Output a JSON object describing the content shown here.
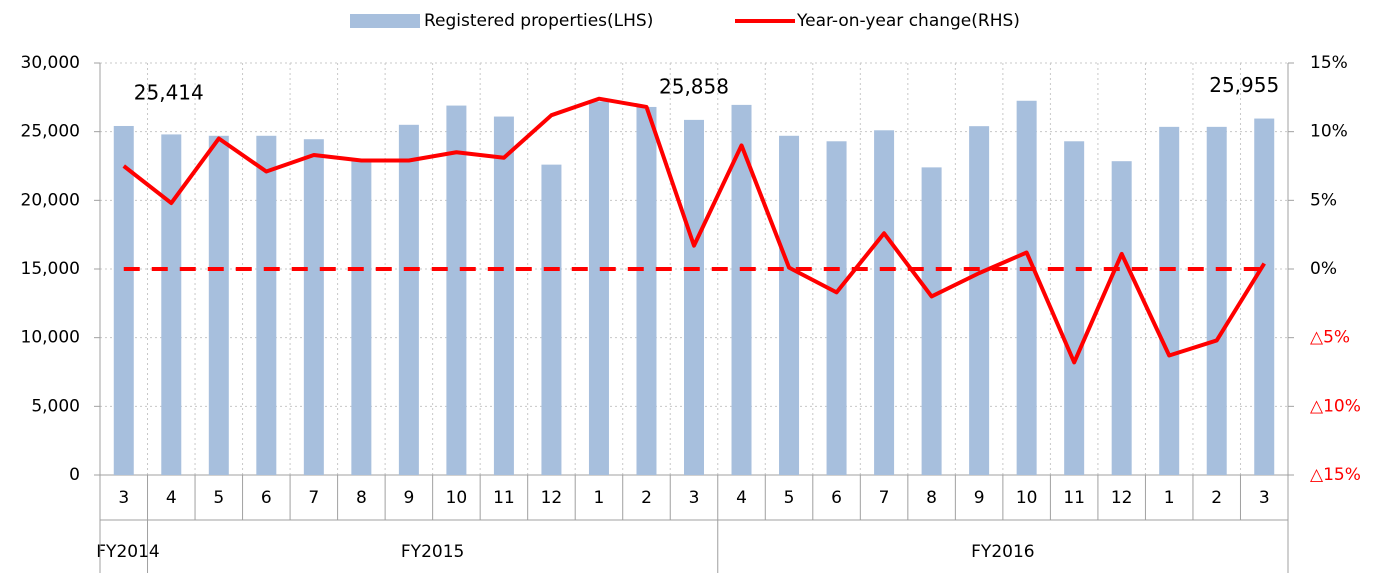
{
  "chart_data": {
    "type": "bar_line",
    "legend_position": "top",
    "grid": true,
    "categories": [
      "3",
      "4",
      "5",
      "6",
      "7",
      "8",
      "9",
      "10",
      "11",
      "12",
      "1",
      "2",
      "3",
      "4",
      "5",
      "6",
      "7",
      "8",
      "9",
      "10",
      "11",
      "12",
      "1",
      "2",
      "3"
    ],
    "groups": [
      {
        "label": "FY2014",
        "span": 1
      },
      {
        "label": "FY2015",
        "span": 12
      },
      {
        "label": "FY2016",
        "span": 12
      }
    ],
    "series": [
      {
        "name": "Registered properties(LHS)",
        "type": "bar",
        "color": "#a7bfdd",
        "values": [
          25414,
          24800,
          24700,
          24700,
          24450,
          22900,
          25500,
          26900,
          26100,
          22600,
          27200,
          26800,
          25858,
          26950,
          24700,
          24300,
          25100,
          22400,
          25400,
          27250,
          24300,
          22850,
          25350,
          25350,
          25955
        ],
        "value_labels": [
          "25,414",
          null,
          null,
          null,
          null,
          null,
          null,
          null,
          null,
          null,
          null,
          null,
          "25,858",
          null,
          null,
          null,
          null,
          null,
          null,
          null,
          null,
          null,
          null,
          null,
          "25,955"
        ]
      },
      {
        "name": "Year-on-year change(RHS)",
        "type": "line",
        "axis": "y2",
        "color": "#ff0000",
        "values": [
          7.5,
          4.8,
          9.5,
          7.1,
          8.3,
          7.9,
          7.9,
          8.5,
          8.1,
          11.2,
          12.4,
          11.8,
          1.7,
          9.0,
          0.1,
          -1.7,
          2.6,
          -2.0,
          -0.3,
          1.2,
          -6.8,
          1.1,
          -6.3,
          -5.2,
          0.4
        ]
      }
    ],
    "y2_reference_line": 0,
    "y2_negative_tick_color": "#ff0000",
    "ylim": [
      0,
      30000
    ],
    "yticks": [
      0,
      {
        "value": 5000,
        "label": "5,000"
      },
      {
        "value": 10000,
        "label": "10,000"
      },
      {
        "value": 15000,
        "label": "15,000"
      },
      {
        "value": 20000,
        "label": "20,000"
      },
      {
        "value": 25000,
        "label": "25,000"
      },
      {
        "value": 30000,
        "label": "30,000"
      }
    ],
    "y2lim": [
      -15,
      15
    ],
    "y2ticks": [
      {
        "value": -15,
        "label": "△15%"
      },
      {
        "value": -10,
        "label": "△10%"
      },
      {
        "value": -5,
        "label": "△5%"
      },
      {
        "value": 0,
        "label": "0%"
      },
      {
        "value": 5,
        "label": "5%"
      },
      {
        "value": 10,
        "label": "10%"
      },
      {
        "value": 15,
        "label": "15%"
      }
    ]
  }
}
